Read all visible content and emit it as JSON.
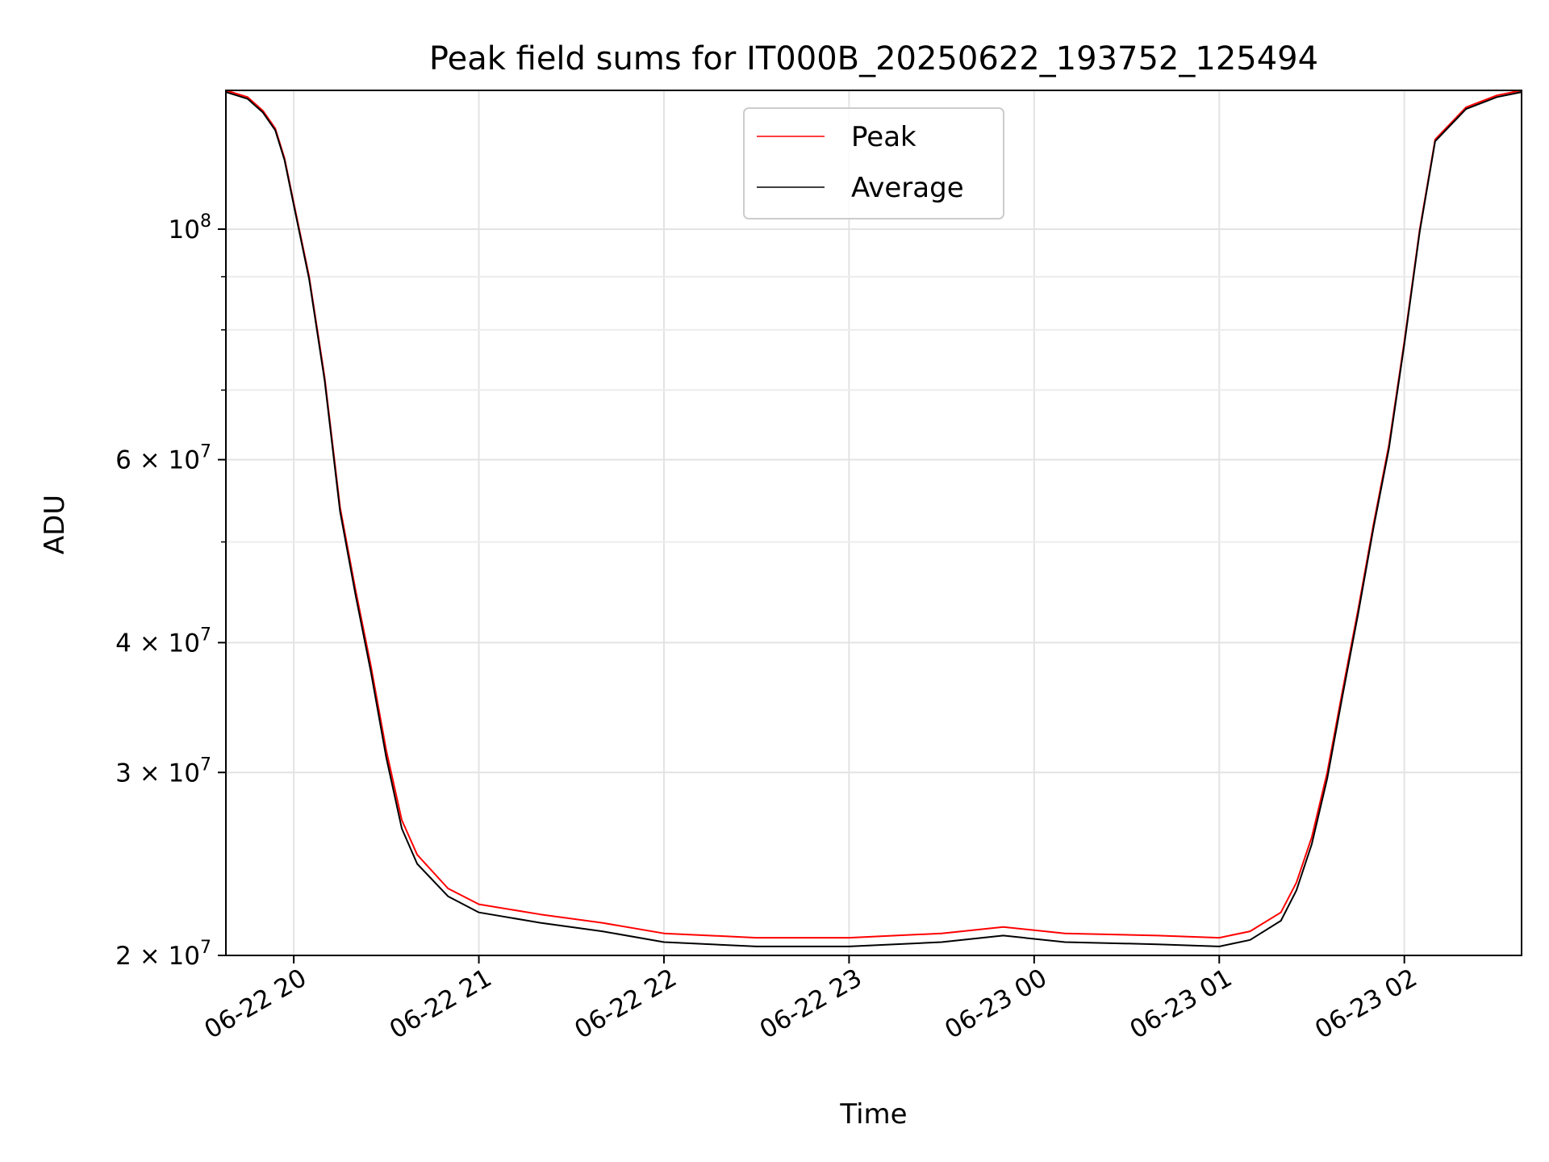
{
  "chart_data": {
    "type": "line",
    "title": "Peak field sums for IT000B_20250622_193752_125494",
    "xlabel": "Time",
    "ylabel": "ADU",
    "yscale": "log",
    "xlim": [
      "2025-06-22 19:38",
      "2025-06-23 02:38"
    ],
    "ylim": [
      20000000,
      136000000
    ],
    "grid": true,
    "legend_position": "top-center",
    "x_ticks": [
      {
        "value": "2025-06-22 20:00",
        "label": "06-22 20"
      },
      {
        "value": "2025-06-22 21:00",
        "label": "06-22 21"
      },
      {
        "value": "2025-06-22 22:00",
        "label": "06-22 22"
      },
      {
        "value": "2025-06-22 23:00",
        "label": "06-22 23"
      },
      {
        "value": "2025-06-23 00:00",
        "label": "06-23 00"
      },
      {
        "value": "2025-06-23 01:00",
        "label": "06-23 01"
      },
      {
        "value": "2025-06-23 02:00",
        "label": "06-23 02"
      }
    ],
    "y_ticks": [
      {
        "value": 20000000,
        "mantissa": "2",
        "exponent": "7"
      },
      {
        "value": 30000000,
        "mantissa": "3",
        "exponent": "7"
      },
      {
        "value": 40000000,
        "mantissa": "4",
        "exponent": "7"
      },
      {
        "value": 60000000,
        "mantissa": "6",
        "exponent": "7"
      },
      {
        "value": 100000000,
        "mantissa": "",
        "exponent": "8"
      }
    ],
    "y_minor_ticks": [
      50000000,
      70000000,
      80000000,
      90000000
    ],
    "series": [
      {
        "name": "Peak",
        "color": "#ff0000",
        "points": [
          [
            "2025-06-22 19:38",
            136000000
          ],
          [
            "2025-06-22 19:45",
            134000000
          ],
          [
            "2025-06-22 19:50",
            130000000
          ],
          [
            "2025-06-22 19:54",
            125000000
          ],
          [
            "2025-06-22 19:57",
            117000000
          ],
          [
            "2025-06-22 20:00",
            106000000
          ],
          [
            "2025-06-22 20:05",
            90000000
          ],
          [
            "2025-06-22 20:10",
            72000000
          ],
          [
            "2025-06-22 20:15",
            54000000
          ],
          [
            "2025-06-22 20:20",
            45000000
          ],
          [
            "2025-06-22 20:25",
            38000000
          ],
          [
            "2025-06-22 20:30",
            31500000
          ],
          [
            "2025-06-22 20:35",
            27000000
          ],
          [
            "2025-06-22 20:40",
            25000000
          ],
          [
            "2025-06-22 20:50",
            23200000
          ],
          [
            "2025-06-22 21:00",
            22400000
          ],
          [
            "2025-06-22 21:20",
            21900000
          ],
          [
            "2025-06-22 21:40",
            21500000
          ],
          [
            "2025-06-22 22:00",
            21000000
          ],
          [
            "2025-06-22 22:30",
            20800000
          ],
          [
            "2025-06-22 23:00",
            20800000
          ],
          [
            "2025-06-22 23:30",
            21000000
          ],
          [
            "2025-06-22 23:50",
            21300000
          ],
          [
            "2025-06-23 00:10",
            21000000
          ],
          [
            "2025-06-23 00:40",
            20900000
          ],
          [
            "2025-06-23 01:00",
            20800000
          ],
          [
            "2025-06-23 01:10",
            21100000
          ],
          [
            "2025-06-23 01:20",
            22000000
          ],
          [
            "2025-06-23 01:25",
            23500000
          ],
          [
            "2025-06-23 01:30",
            26000000
          ],
          [
            "2025-06-23 01:35",
            30000000
          ],
          [
            "2025-06-23 01:40",
            36000000
          ],
          [
            "2025-06-23 01:45",
            43000000
          ],
          [
            "2025-06-23 01:50",
            52000000
          ],
          [
            "2025-06-23 01:55",
            62000000
          ],
          [
            "2025-06-23 02:00",
            78000000
          ],
          [
            "2025-06-23 02:05",
            100000000
          ],
          [
            "2025-06-23 02:10",
            122000000
          ],
          [
            "2025-06-23 02:20",
            131000000
          ],
          [
            "2025-06-23 02:30",
            134500000
          ],
          [
            "2025-06-23 02:38",
            136000000
          ]
        ]
      },
      {
        "name": "Average",
        "color": "#000000",
        "points": [
          [
            "2025-06-22 19:38",
            135500000
          ],
          [
            "2025-06-22 19:45",
            133500000
          ],
          [
            "2025-06-22 19:50",
            129500000
          ],
          [
            "2025-06-22 19:54",
            124500000
          ],
          [
            "2025-06-22 19:57",
            116500000
          ],
          [
            "2025-06-22 20:00",
            105500000
          ],
          [
            "2025-06-22 20:05",
            89500000
          ],
          [
            "2025-06-22 20:10",
            71500000
          ],
          [
            "2025-06-22 20:15",
            53500000
          ],
          [
            "2025-06-22 20:20",
            44500000
          ],
          [
            "2025-06-22 20:25",
            37500000
          ],
          [
            "2025-06-22 20:30",
            31000000
          ],
          [
            "2025-06-22 20:35",
            26500000
          ],
          [
            "2025-06-22 20:40",
            24500000
          ],
          [
            "2025-06-22 20:50",
            22800000
          ],
          [
            "2025-06-22 21:00",
            22000000
          ],
          [
            "2025-06-22 21:20",
            21500000
          ],
          [
            "2025-06-22 21:40",
            21100000
          ],
          [
            "2025-06-22 22:00",
            20600000
          ],
          [
            "2025-06-22 22:30",
            20400000
          ],
          [
            "2025-06-22 23:00",
            20400000
          ],
          [
            "2025-06-22 23:30",
            20600000
          ],
          [
            "2025-06-22 23:50",
            20900000
          ],
          [
            "2025-06-23 00:10",
            20600000
          ],
          [
            "2025-06-23 00:40",
            20500000
          ],
          [
            "2025-06-23 01:00",
            20400000
          ],
          [
            "2025-06-23 01:10",
            20700000
          ],
          [
            "2025-06-23 01:20",
            21600000
          ],
          [
            "2025-06-23 01:25",
            23100000
          ],
          [
            "2025-06-23 01:30",
            25600000
          ],
          [
            "2025-06-23 01:35",
            29600000
          ],
          [
            "2025-06-23 01:40",
            35600000
          ],
          [
            "2025-06-23 01:45",
            42600000
          ],
          [
            "2025-06-23 01:50",
            51600000
          ],
          [
            "2025-06-23 01:55",
            61500000
          ],
          [
            "2025-06-23 02:00",
            77500000
          ],
          [
            "2025-06-23 02:05",
            99500000
          ],
          [
            "2025-06-23 02:10",
            121500000
          ],
          [
            "2025-06-23 02:20",
            130500000
          ],
          [
            "2025-06-23 02:30",
            134000000
          ],
          [
            "2025-06-23 02:38",
            135500000
          ]
        ]
      }
    ]
  }
}
